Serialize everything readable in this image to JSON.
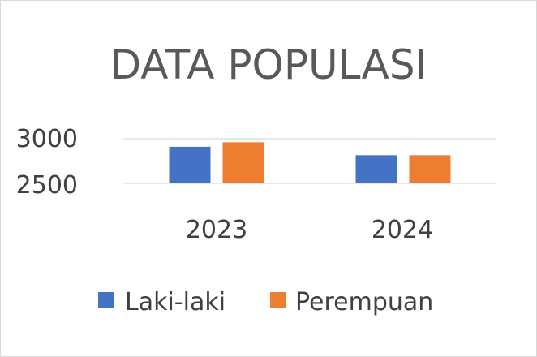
{
  "chart_data": {
    "type": "bar",
    "title": "DATA POPULASI",
    "categories": [
      "2023",
      "2024"
    ],
    "series": [
      {
        "name": "Laki-laki",
        "values": [
          2910,
          2815
        ],
        "color": "#4472C4"
      },
      {
        "name": "Perempuan",
        "values": [
          2960,
          2815
        ],
        "color": "#ED7D31"
      }
    ],
    "ylim": [
      2500,
      3000
    ],
    "yticks": [
      "2500",
      "3000"
    ],
    "grid": true,
    "legend": "bottom"
  }
}
